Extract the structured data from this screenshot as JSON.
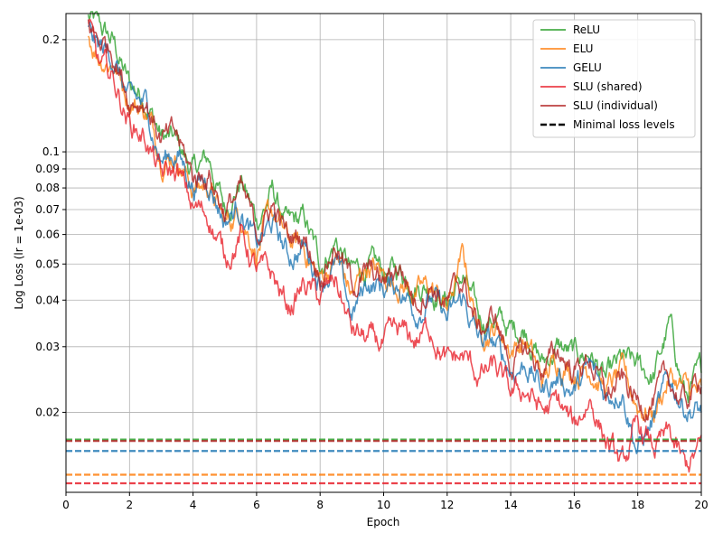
{
  "chart_data": {
    "type": "line",
    "title": "",
    "xlabel": "Epoch",
    "ylabel": "Log Loss (lr = 1e-03)",
    "xlim": [
      0,
      20
    ],
    "ylim": [
      0.0122,
      0.235
    ],
    "yscale": "log",
    "grid": true,
    "legend_position": "top-right",
    "x_ticks": [
      "0",
      "2",
      "4",
      "6",
      "8",
      "10",
      "12",
      "14",
      "16",
      "18",
      "20"
    ],
    "y_ticks": [
      "0.02",
      "0.03",
      "0.04",
      "0.05",
      "0.06",
      "0.07",
      "0.08",
      "0.09",
      "0.1",
      "0.2"
    ],
    "series": [
      {
        "name": "ReLU",
        "color": "#2ca02c",
        "x": [
          0.7,
          1,
          1.5,
          2,
          2.5,
          3,
          3.5,
          4,
          4.5,
          5,
          5.5,
          6,
          6.5,
          7,
          7.5,
          8,
          8.5,
          9,
          9.5,
          10,
          10.5,
          11,
          11.5,
          12,
          12.5,
          13,
          13.5,
          14,
          14.5,
          15,
          15.5,
          16,
          16.5,
          17,
          17.5,
          18,
          18.5,
          19,
          19.5,
          20
        ],
        "values": [
          0.23,
          0.215,
          0.195,
          0.15,
          0.142,
          0.11,
          0.105,
          0.088,
          0.095,
          0.07,
          0.085,
          0.065,
          0.078,
          0.062,
          0.065,
          0.05,
          0.058,
          0.047,
          0.049,
          0.047,
          0.048,
          0.045,
          0.044,
          0.04,
          0.046,
          0.035,
          0.036,
          0.033,
          0.034,
          0.027,
          0.03,
          0.028,
          0.029,
          0.024,
          0.027,
          0.026,
          0.025,
          0.034,
          0.022,
          0.025
        ]
      },
      {
        "name": "ELU",
        "color": "#ff7f0e",
        "x": [
          0.7,
          1,
          1.5,
          2,
          2.5,
          3,
          3.5,
          4,
          4.5,
          5,
          5.5,
          6,
          6.5,
          7,
          7.5,
          8,
          8.5,
          9,
          9.5,
          10,
          10.5,
          11,
          11.5,
          12,
          12.5,
          13,
          13.5,
          14,
          14.5,
          15,
          15.5,
          16,
          16.5,
          17,
          17.5,
          18,
          18.5,
          19,
          19.5,
          20
        ],
        "values": [
          0.205,
          0.185,
          0.175,
          0.14,
          0.13,
          0.1,
          0.098,
          0.08,
          0.082,
          0.063,
          0.07,
          0.055,
          0.068,
          0.057,
          0.055,
          0.045,
          0.052,
          0.041,
          0.05,
          0.046,
          0.045,
          0.042,
          0.043,
          0.038,
          0.052,
          0.033,
          0.034,
          0.03,
          0.031,
          0.024,
          0.028,
          0.026,
          0.027,
          0.023,
          0.025,
          0.021,
          0.02,
          0.025,
          0.023,
          0.022
        ]
      },
      {
        "name": "GELU",
        "color": "#1f77b4",
        "x": [
          0.7,
          1,
          1.5,
          2,
          2.5,
          3,
          3.5,
          4,
          4.5,
          5,
          5.5,
          6,
          6.5,
          7,
          7.5,
          8,
          8.5,
          9,
          9.5,
          10,
          10.5,
          11,
          11.5,
          12,
          12.5,
          13,
          13.5,
          14,
          14.5,
          15,
          15.5,
          16,
          16.5,
          17,
          17.5,
          18,
          18.5,
          19,
          19.5,
          20
        ],
        "values": [
          0.21,
          0.19,
          0.18,
          0.135,
          0.133,
          0.095,
          0.1,
          0.082,
          0.085,
          0.066,
          0.072,
          0.055,
          0.064,
          0.052,
          0.056,
          0.046,
          0.05,
          0.036,
          0.045,
          0.043,
          0.044,
          0.038,
          0.041,
          0.035,
          0.04,
          0.031,
          0.03,
          0.026,
          0.027,
          0.023,
          0.025,
          0.023,
          0.026,
          0.022,
          0.024,
          0.016,
          0.019,
          0.024,
          0.021,
          0.02
        ]
      },
      {
        "name": "SLU (shared)",
        "color": "#e8212b",
        "x": [
          0.7,
          1,
          1.5,
          2,
          2.5,
          3,
          3.5,
          4,
          4.5,
          5,
          5.5,
          6,
          6.5,
          7,
          7.5,
          8,
          8.5,
          9,
          9.5,
          10,
          10.5,
          11,
          11.5,
          12,
          12.5,
          13,
          13.5,
          14,
          14.5,
          15,
          15.5,
          16,
          16.5,
          17,
          17.5,
          18,
          18.5,
          19,
          19.5,
          20
        ],
        "values": [
          0.22,
          0.17,
          0.155,
          0.12,
          0.11,
          0.085,
          0.088,
          0.07,
          0.068,
          0.052,
          0.06,
          0.048,
          0.046,
          0.038,
          0.044,
          0.04,
          0.045,
          0.033,
          0.031,
          0.03,
          0.032,
          0.031,
          0.034,
          0.027,
          0.028,
          0.025,
          0.026,
          0.022,
          0.023,
          0.02,
          0.021,
          0.018,
          0.022,
          0.017,
          0.014,
          0.018,
          0.016,
          0.017,
          0.014,
          0.016
        ]
      },
      {
        "name": "SLU (individual)",
        "color": "#b22222",
        "x": [
          0.7,
          1,
          1.5,
          2,
          2.5,
          3,
          3.5,
          4,
          4.5,
          5,
          5.5,
          6,
          6.5,
          7,
          7.5,
          8,
          8.5,
          9,
          9.5,
          10,
          10.5,
          11,
          11.5,
          12,
          12.5,
          13,
          13.5,
          14,
          14.5,
          15,
          15.5,
          16,
          16.5,
          17,
          17.5,
          18,
          18.5,
          19,
          19.5,
          20
        ],
        "values": [
          0.225,
          0.2,
          0.19,
          0.14,
          0.14,
          0.108,
          0.108,
          0.085,
          0.088,
          0.07,
          0.078,
          0.06,
          0.072,
          0.058,
          0.06,
          0.048,
          0.057,
          0.044,
          0.047,
          0.044,
          0.05,
          0.04,
          0.045,
          0.039,
          0.045,
          0.033,
          0.036,
          0.027,
          0.029,
          0.026,
          0.029,
          0.026,
          0.028,
          0.022,
          0.024,
          0.021,
          0.022,
          0.024,
          0.021,
          0.025
        ]
      },
      {
        "name": "Minimal loss levels",
        "color": "#000000",
        "dashed": true,
        "levels": [
          {
            "color": "#2ca02c",
            "value": 0.0169
          },
          {
            "color": "#b22222",
            "value": 0.01675
          },
          {
            "color": "#1f77b4",
            "value": 0.01575
          },
          {
            "color": "#ff7f0e",
            "value": 0.0136
          },
          {
            "color": "#e8212b",
            "value": 0.0129
          }
        ]
      }
    ]
  }
}
